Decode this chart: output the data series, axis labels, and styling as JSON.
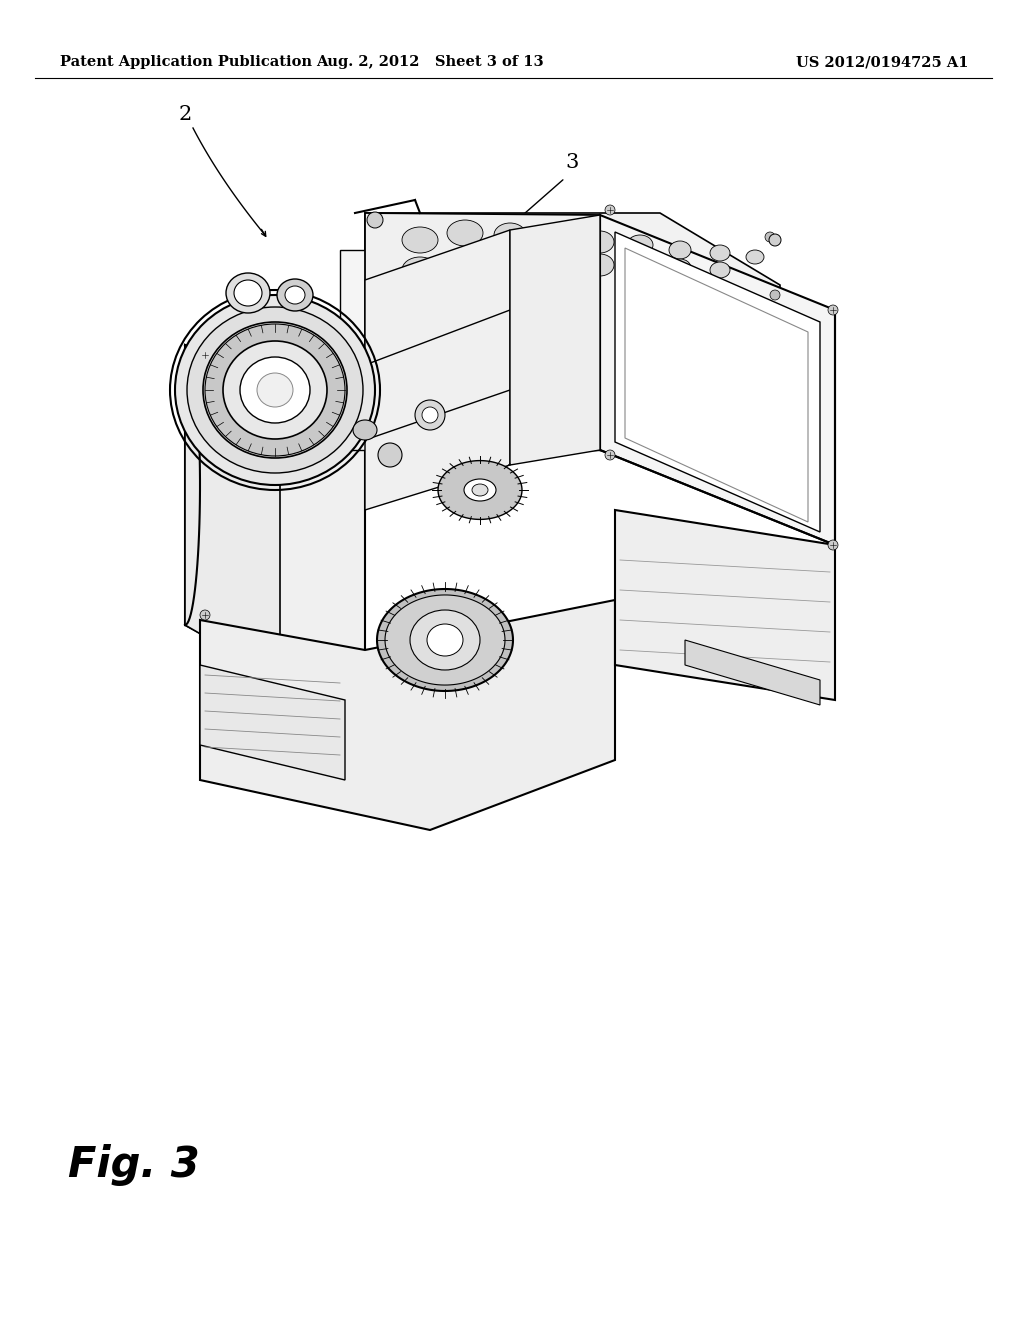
{
  "background_color": "#ffffff",
  "header_left": "Patent Application Publication",
  "header_mid": "Aug. 2, 2012   Sheet 3 of 13",
  "header_right": "US 2012/0194725 A1",
  "header_fontsize": 10.5,
  "fig_label": "Fig. 3",
  "fig_label_fontsize": 30,
  "label_2_text": "2",
  "label_3_text": "3"
}
